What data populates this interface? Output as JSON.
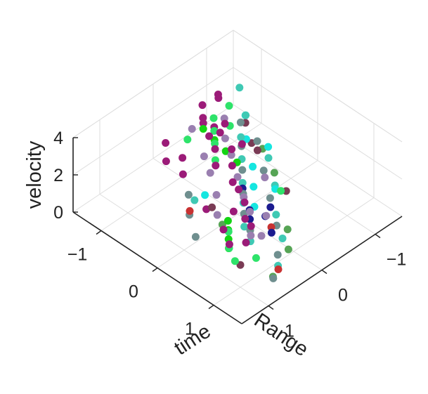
{
  "chart_data": {
    "type": "scatter3d",
    "title": "",
    "xlabel": "time",
    "ylabel": "Range",
    "zlabel": "velocity",
    "xlim": [
      -1.5,
      1.5
    ],
    "ylim": [
      -1.5,
      1.5
    ],
    "zlim": [
      0,
      4
    ],
    "xticks": [
      {
        "value": -1,
        "label": "−1"
      },
      {
        "value": 0,
        "label": "0"
      },
      {
        "value": 1,
        "label": "1"
      }
    ],
    "yticks": [
      {
        "value": 1,
        "label": "1"
      },
      {
        "value": 0,
        "label": "0"
      },
      {
        "value": -1,
        "label": "−1"
      }
    ],
    "zticks": [
      {
        "value": 0,
        "label": "0"
      },
      {
        "value": 2,
        "label": "2"
      },
      {
        "value": 4,
        "label": "4"
      }
    ],
    "grid": true,
    "colors": {
      "axis": "#222222",
      "grid": "#dedede",
      "palette": [
        "#9b1b78",
        "#9a7fb0",
        "#6f8f8f",
        "#3fc9b4",
        "#15e6e0",
        "#2ee36a",
        "#1b1b8f",
        "#7a3b55",
        "#56a455",
        "#c83232",
        "#14d414"
      ]
    },
    "series": [
      {
        "color": "#9b1b78",
        "points": [
          [
            -0.9,
            -0.3,
            2.8
          ],
          [
            -0.8,
            -0.2,
            2.9
          ],
          [
            -0.7,
            -0.3,
            2.7
          ],
          [
            -0.6,
            -0.1,
            2.8
          ],
          [
            -0.5,
            -0.2,
            3.0
          ],
          [
            -0.4,
            0.0,
            2.7
          ],
          [
            -0.2,
            -0.1,
            2.9
          ],
          [
            0.0,
            0.1,
            2.8
          ],
          [
            0.2,
            0.3,
            2.7
          ],
          [
            0.4,
            0.4,
            2.9
          ],
          [
            0.6,
            0.5,
            2.8
          ],
          [
            0.8,
            0.7,
            2.7
          ],
          [
            1.0,
            0.8,
            2.9
          ],
          [
            1.1,
            1.0,
            2.6
          ],
          [
            -0.6,
            0.4,
            2.6
          ],
          [
            -0.4,
            0.6,
            2.5
          ],
          [
            0.3,
            0.9,
            2.6
          ],
          [
            -0.7,
            -0.5,
            2.5
          ],
          [
            -0.3,
            -0.4,
            2.4
          ],
          [
            0.5,
            0.6,
            2.3
          ],
          [
            -1.2,
            -0.9,
            2.3
          ],
          [
            -1.1,
            -0.8,
            2.5
          ],
          [
            -1.1,
            -0.5,
            2.7
          ],
          [
            -0.9,
            0.4,
            2.8
          ],
          [
            -0.7,
            0.6,
            2.6
          ],
          [
            0.7,
            1.0,
            2.5
          ],
          [
            0.9,
            1.1,
            2.3
          ],
          [
            -0.2,
            0.2,
            2.6
          ]
        ]
      },
      {
        "color": "#9a7fb0",
        "points": [
          [
            -0.9,
            -0.7,
            2.0
          ],
          [
            -0.6,
            -0.4,
            2.1
          ],
          [
            -0.3,
            -0.2,
            2.2
          ],
          [
            0.0,
            0.0,
            2.0
          ],
          [
            0.3,
            0.2,
            1.9
          ],
          [
            0.6,
            0.4,
            2.1
          ],
          [
            0.9,
            0.7,
            2.0
          ],
          [
            -0.2,
            0.3,
            2.4
          ],
          [
            0.1,
            0.5,
            2.2
          ],
          [
            0.4,
            0.8,
            2.3
          ],
          [
            -0.5,
            0.1,
            2.3
          ],
          [
            0.7,
            0.2,
            1.7
          ],
          [
            0.9,
            0.5,
            1.6
          ],
          [
            -1.0,
            -0.2,
            2.2
          ],
          [
            0.2,
            -0.3,
            1.8
          ]
        ]
      },
      {
        "color": "#6f8f8f",
        "points": [
          [
            -0.8,
            -0.9,
            1.6
          ],
          [
            -0.5,
            -0.6,
            1.5
          ],
          [
            -0.2,
            -0.3,
            1.4
          ],
          [
            0.1,
            0.0,
            1.3
          ],
          [
            0.4,
            0.3,
            1.4
          ],
          [
            0.7,
            0.5,
            1.5
          ],
          [
            -0.6,
            -1.0,
            0.8
          ],
          [
            -0.2,
            -0.7,
            0.6
          ],
          [
            0.2,
            -0.4,
            0.5
          ],
          [
            0.6,
            -0.1,
            0.4
          ],
          [
            1.0,
            0.3,
            0.4
          ],
          [
            1.3,
            0.7,
            0.5
          ],
          [
            -0.3,
            0.6,
            1.6
          ],
          [
            0.0,
            0.9,
            1.7
          ],
          [
            0.3,
            1.1,
            1.5
          ]
        ]
      },
      {
        "color": "#3fc9b4",
        "points": [
          [
            -0.9,
            -1.1,
            1.4
          ],
          [
            -0.7,
            -0.8,
            1.2
          ],
          [
            -0.4,
            -0.5,
            1.2
          ],
          [
            -0.1,
            -0.2,
            1.1
          ],
          [
            0.2,
            0.1,
            1.2
          ],
          [
            0.5,
            0.4,
            1.1
          ],
          [
            0.8,
            0.6,
            1.3
          ],
          [
            -0.4,
            -1.0,
            0.3
          ],
          [
            0.0,
            -0.7,
            0.2
          ],
          [
            0.4,
            -0.3,
            0.2
          ],
          [
            0.8,
            0.0,
            0.3
          ],
          [
            1.1,
            0.4,
            0.2
          ],
          [
            -1.2,
            -1.3,
            1.9
          ],
          [
            -0.1,
            0.7,
            1.9
          ]
        ]
      },
      {
        "color": "#15e6e0",
        "points": [
          [
            -1.0,
            -1.2,
            1.0
          ],
          [
            -0.7,
            -0.9,
            0.9
          ],
          [
            -0.3,
            -0.6,
            0.8
          ],
          [
            0.0,
            -0.3,
            0.9
          ],
          [
            0.3,
            0.0,
            1.0
          ],
          [
            -0.5,
            -1.1,
            0.5
          ],
          [
            0.1,
            -0.6,
            0.4
          ],
          [
            -0.2,
            0.4,
            1.4
          ]
        ]
      },
      {
        "color": "#2ee36a",
        "points": [
          [
            -0.9,
            -0.5,
            2.4
          ],
          [
            -0.7,
            -0.3,
            2.5
          ],
          [
            -0.5,
            -0.1,
            2.6
          ],
          [
            -0.3,
            0.1,
            2.5
          ],
          [
            0.6,
            0.8,
            1.8
          ],
          [
            0.8,
            1.0,
            1.7
          ],
          [
            1.0,
            1.1,
            1.6
          ],
          [
            -1.1,
            -1.0,
            1.7
          ],
          [
            -0.8,
            -0.7,
            1.8
          ],
          [
            0.2,
            -0.6,
            0.5
          ],
          [
            0.9,
            0.6,
            0.6
          ],
          [
            -0.7,
            0.2,
            3.0
          ]
        ]
      },
      {
        "color": "#1b1b8f",
        "points": [
          [
            0.5,
            0.3,
            1.8
          ],
          [
            0.6,
            0.4,
            1.7
          ],
          [
            -0.1,
            -0.2,
            0.8
          ],
          [
            0.3,
            -0.3,
            0.4
          ],
          [
            0.4,
            -0.1,
            0.5
          ],
          [
            0.7,
            0.1,
            0.6
          ]
        ]
      },
      {
        "color": "#7a3b55",
        "points": [
          [
            -1.0,
            -1.2,
            0.6
          ],
          [
            -0.7,
            -1.0,
            0.5
          ],
          [
            -0.5,
            -0.9,
            0.7
          ],
          [
            0.4,
            0.9,
            2.9
          ],
          [
            0.2,
            -0.7,
            0.3
          ],
          [
            1.0,
            1.0,
            1.2
          ]
        ]
      },
      {
        "color": "#56a455",
        "points": [
          [
            -0.6,
            -1.1,
            0.2
          ],
          [
            -0.2,
            -0.9,
            0.1
          ],
          [
            0.7,
            -0.2,
            0.2
          ],
          [
            1.0,
            0.1,
            0.3
          ],
          [
            1.2,
            0.6,
            0.2
          ],
          [
            0.3,
            0.6,
            1.2
          ]
        ]
      },
      {
        "color": "#c83232",
        "points": [
          [
            0.6,
            0.0,
            0.5
          ],
          [
            1.2,
            0.5,
            0.4
          ],
          [
            0.1,
            1.0,
            2.3
          ]
        ]
      },
      {
        "color": "#14d414",
        "points": [
          [
            -0.8,
            -0.2,
            2.6
          ],
          [
            -0.6,
            -0.2,
            2.4
          ],
          [
            -0.4,
            -0.2,
            2.2
          ],
          [
            -0.2,
            -0.2,
            2.0
          ],
          [
            0.4,
            0.6,
            1.6
          ],
          [
            0.5,
            0.7,
            1.5
          ],
          [
            0.6,
            0.8,
            1.4
          ],
          [
            0.7,
            0.9,
            1.3
          ]
        ]
      }
    ]
  }
}
